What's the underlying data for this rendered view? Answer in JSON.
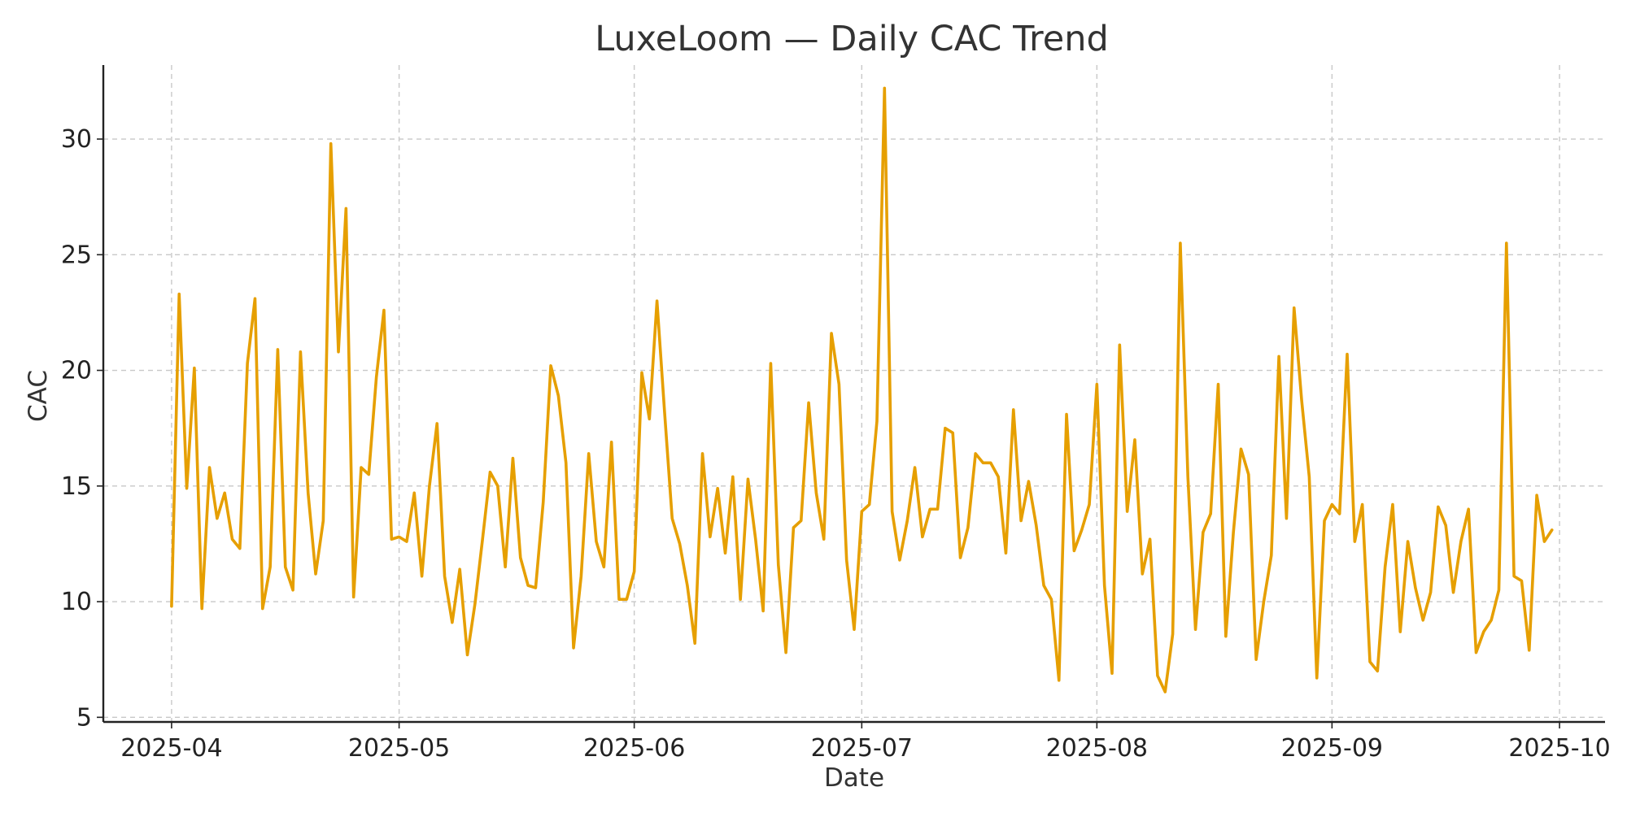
{
  "chart_data": {
    "type": "line",
    "title": "LuxeLoom — Daily CAC Trend",
    "xlabel": "Date",
    "ylabel": "CAC",
    "x_start": "2025-04-01",
    "xlim": [
      "2025-03-23",
      "2025-10-07"
    ],
    "ylim": [
      4.8,
      33.2
    ],
    "x_ticks": [
      "2025-04",
      "2025-05",
      "2025-06",
      "2025-07",
      "2025-08",
      "2025-09",
      "2025-10"
    ],
    "y_ticks": [
      5,
      10,
      15,
      20,
      25,
      30
    ],
    "grid": true,
    "series": [
      {
        "color": "#E69F00",
        "values": [
          9.8,
          23.3,
          14.9,
          20.1,
          9.7,
          15.8,
          13.6,
          14.7,
          12.7,
          12.3,
          20.3,
          23.1,
          9.7,
          11.5,
          20.9,
          11.5,
          10.5,
          20.8,
          14.7,
          11.2,
          13.5,
          29.8,
          20.8,
          27.0,
          10.2,
          15.8,
          15.5,
          19.7,
          22.6,
          12.7,
          12.8,
          12.6,
          14.7,
          11.1,
          15.0,
          17.7,
          11.1,
          9.1,
          11.4,
          7.7,
          9.9,
          12.7,
          15.6,
          15.0,
          11.5,
          16.2,
          11.9,
          10.7,
          10.6,
          14.3,
          20.2,
          18.9,
          16.0,
          8.0,
          11.1,
          16.4,
          12.6,
          11.5,
          16.9,
          10.1,
          10.1,
          11.3,
          19.9,
          17.9,
          23.0,
          18.2,
          13.6,
          12.5,
          10.7,
          8.2,
          16.4,
          12.8,
          14.9,
          12.1,
          15.4,
          10.1,
          15.3,
          12.7,
          9.6,
          20.3,
          11.6,
          7.8,
          13.2,
          13.5,
          18.6,
          14.7,
          12.7,
          21.6,
          19.4,
          11.8,
          8.8,
          13.9,
          14.2,
          17.8,
          32.2,
          13.9,
          11.8,
          13.5,
          15.8,
          12.8,
          14.0,
          14.0,
          17.5,
          17.3,
          11.9,
          13.2,
          16.4,
          16.0,
          16.0,
          15.4,
          12.1,
          18.3,
          13.5,
          15.2,
          13.3,
          10.7,
          10.1,
          6.6,
          18.1,
          12.2,
          13.1,
          14.2,
          19.4,
          10.7,
          6.9,
          21.1,
          13.9,
          17.0,
          11.2,
          12.7,
          6.8,
          6.1,
          8.6,
          25.5,
          15.4,
          8.8,
          13.0,
          13.8,
          19.4,
          8.5,
          13.0,
          16.6,
          15.5,
          7.5,
          10.0,
          12.0,
          20.6,
          13.6,
          22.7,
          18.7,
          15.4,
          6.7,
          13.5,
          14.2,
          13.8,
          20.7,
          12.6,
          14.2,
          7.4,
          7.0,
          11.5,
          14.2,
          8.7,
          12.6,
          10.6,
          9.2,
          10.4,
          14.1,
          13.3,
          10.4,
          12.6,
          14.0,
          7.8,
          8.7,
          9.2,
          10.5,
          25.5,
          11.1,
          10.9,
          7.9,
          14.6,
          12.6,
          13.1
        ]
      }
    ]
  }
}
